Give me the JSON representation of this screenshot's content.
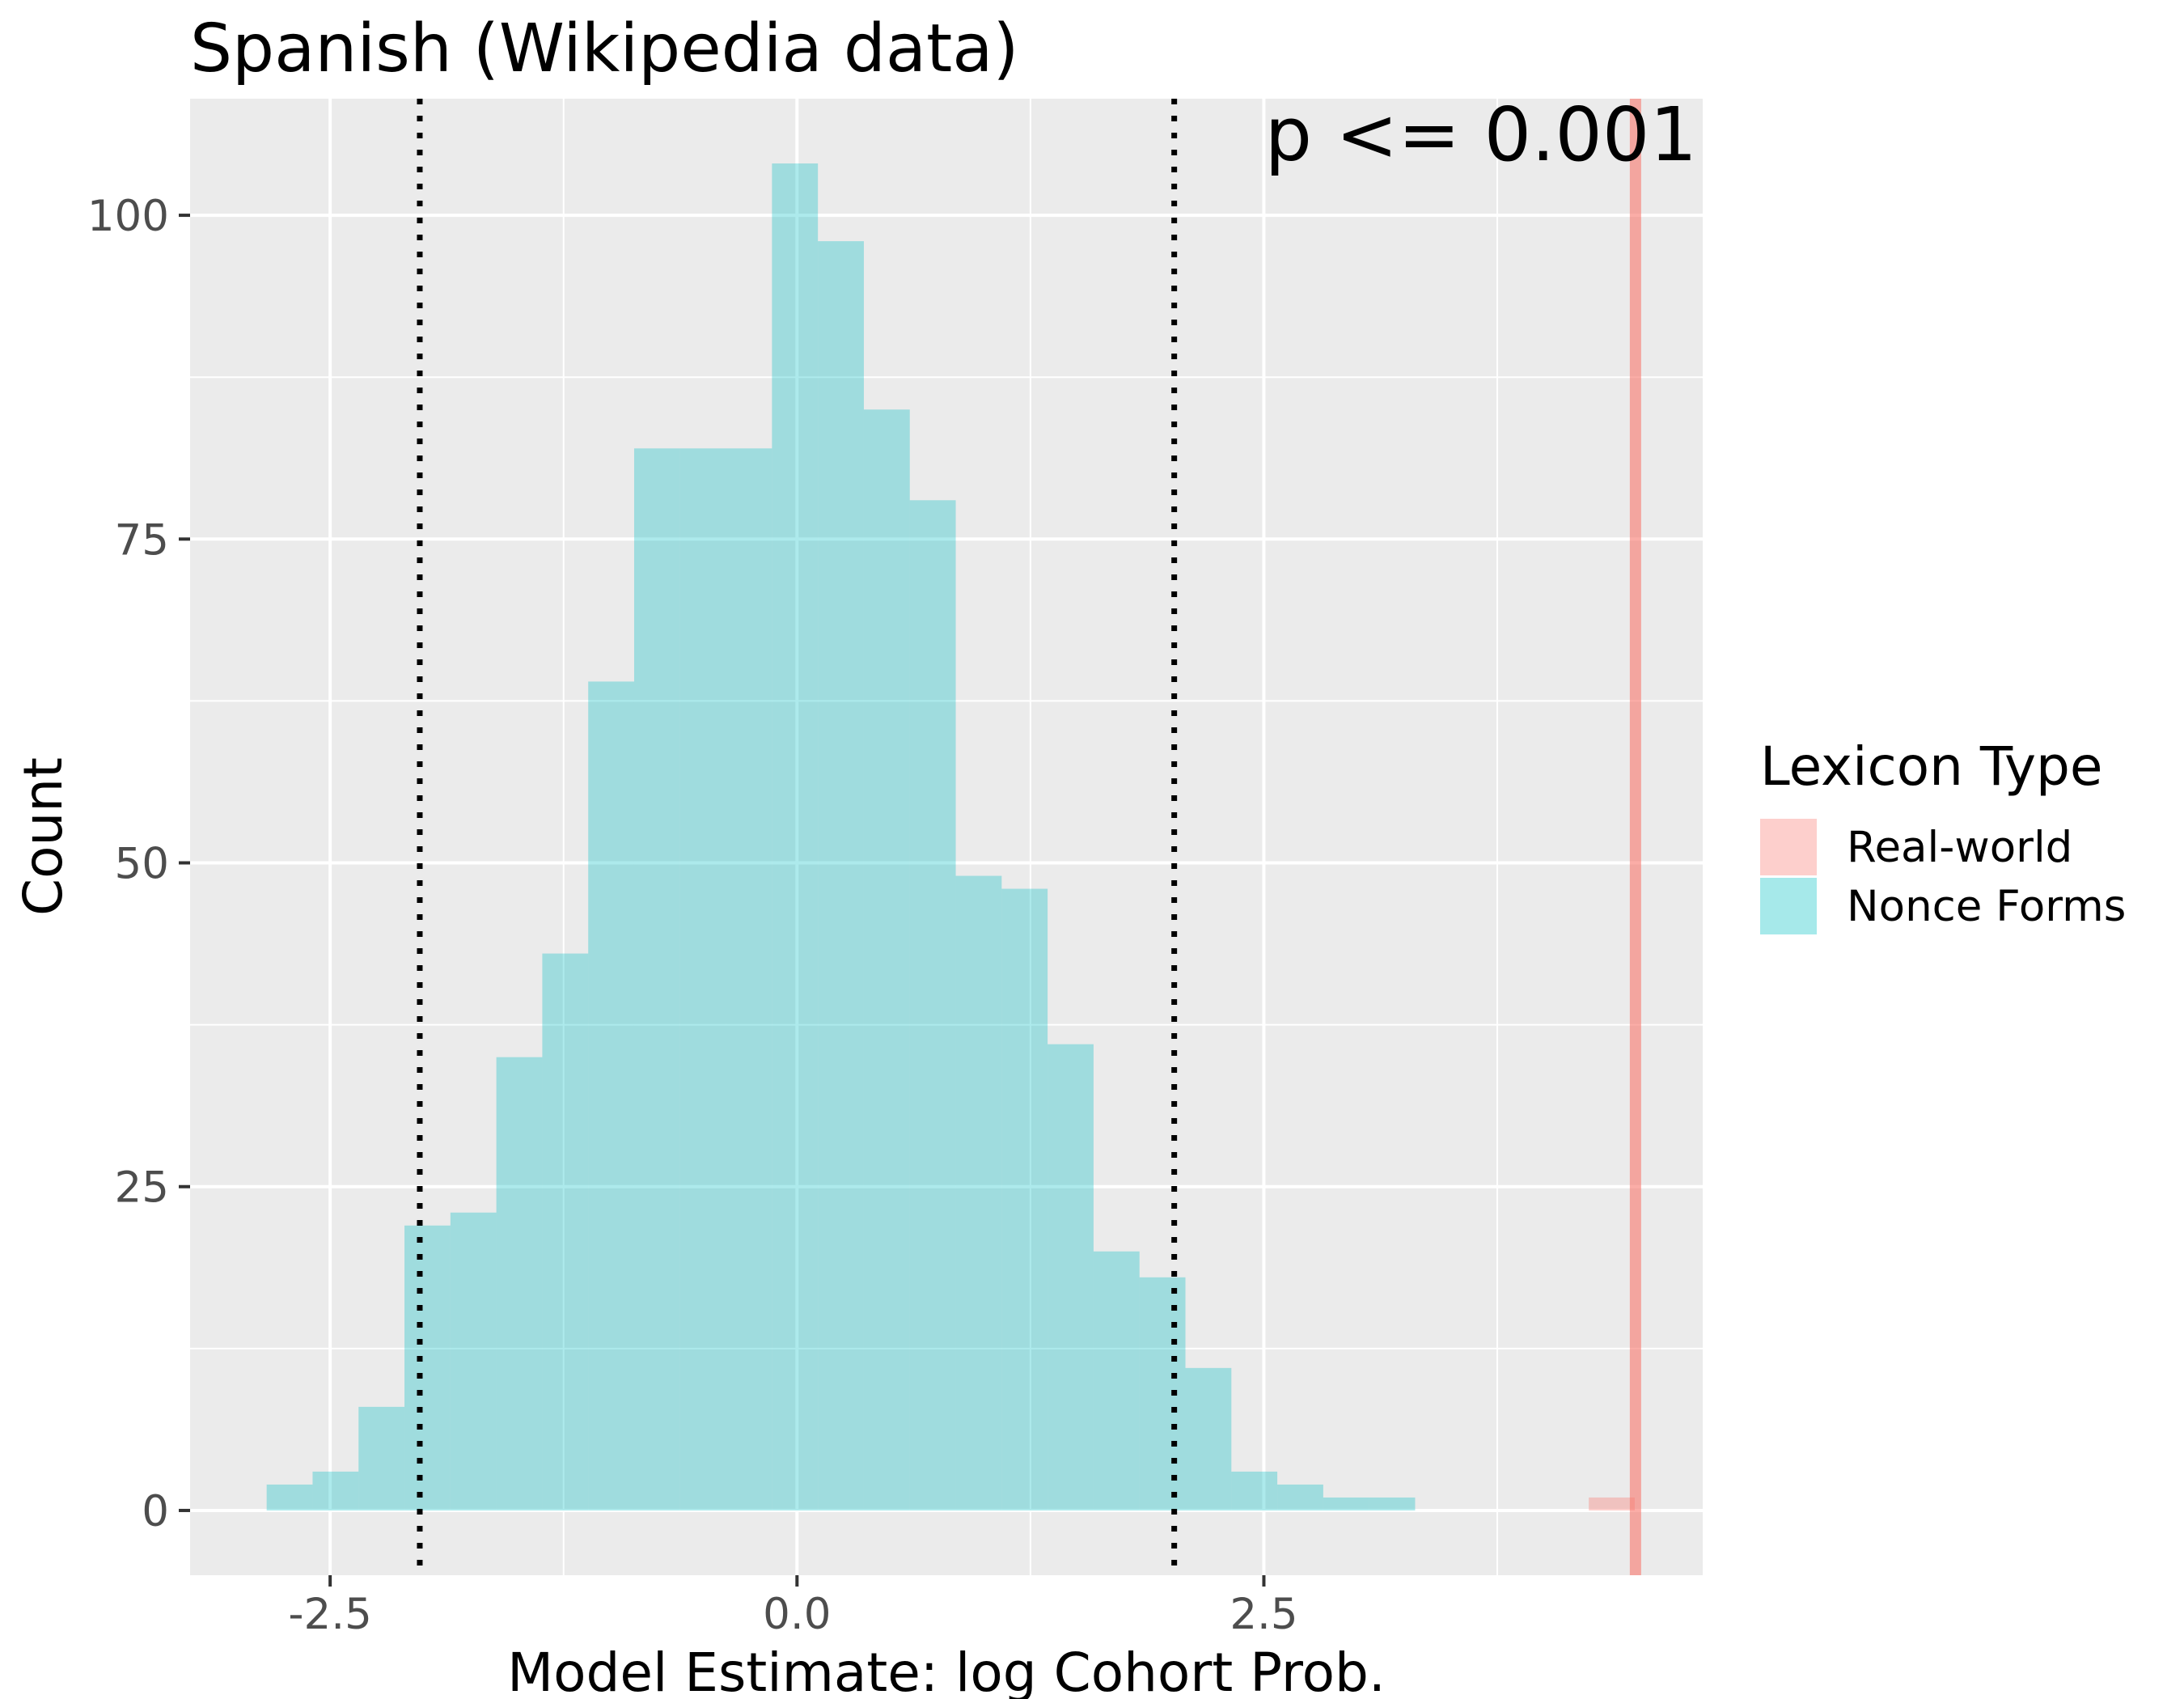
{
  "chart_data": {
    "type": "histogram",
    "title": "Spanish (Wikipedia data)",
    "xlabel": "Model Estimate: log Cohort Prob.",
    "ylabel": "Count",
    "xlim": [
      -3.25,
      4.85
    ],
    "ylim": [
      -5,
      109
    ],
    "x_ticks": [
      -2.5,
      0.0,
      2.5
    ],
    "x_tick_labels": [
      "-2.5",
      "0.0",
      "2.5"
    ],
    "y_ticks": [
      0,
      25,
      50,
      75,
      100
    ],
    "y_tick_labels": [
      "0",
      "25",
      "50",
      "75",
      "100"
    ],
    "grid": true,
    "legend": {
      "title": "Lexicon Type",
      "placement": "right",
      "items": [
        {
          "label": "Real-world",
          "color": "#F8766D"
        },
        {
          "label": "Nonce Forms",
          "color": "#00BFC4"
        }
      ]
    },
    "series": [
      {
        "name": "Nonce Forms",
        "color": "#00BFC4",
        "bin_width": 0.246,
        "bins": [
          {
            "x0": -2.84,
            "count": 2
          },
          {
            "x0": -2.594,
            "count": 3
          },
          {
            "x0": -2.348,
            "count": 8
          },
          {
            "x0": -2.102,
            "count": 22
          },
          {
            "x0": -1.856,
            "count": 23
          },
          {
            "x0": -1.61,
            "count": 35
          },
          {
            "x0": -1.364,
            "count": 43
          },
          {
            "x0": -1.118,
            "count": 64
          },
          {
            "x0": -0.872,
            "count": 82
          },
          {
            "x0": -0.626,
            "count": 82
          },
          {
            "x0": -0.38,
            "count": 82
          },
          {
            "x0": -0.134,
            "count": 104
          },
          {
            "x0": 0.112,
            "count": 98
          },
          {
            "x0": 0.358,
            "count": 85
          },
          {
            "x0": 0.604,
            "count": 78
          },
          {
            "x0": 0.85,
            "count": 49
          },
          {
            "x0": 1.096,
            "count": 48
          },
          {
            "x0": 1.342,
            "count": 36
          },
          {
            "x0": 1.588,
            "count": 20
          },
          {
            "x0": 1.834,
            "count": 18
          },
          {
            "x0": 2.08,
            "count": 11
          },
          {
            "x0": 2.326,
            "count": 3
          },
          {
            "x0": 2.572,
            "count": 2
          },
          {
            "x0": 2.818,
            "count": 1
          },
          {
            "x0": 3.064,
            "count": 1
          }
        ]
      },
      {
        "name": "Real-world",
        "color": "#F8766D",
        "bin_width": 0.246,
        "bins": [
          {
            "x0": 4.24,
            "count": 1
          }
        ]
      }
    ],
    "reference_lines": [
      {
        "x": -2.02,
        "style": "dotted",
        "color": "#000000"
      },
      {
        "x": 2.02,
        "style": "dotted",
        "color": "#000000"
      },
      {
        "x": 4.49,
        "style": "solid",
        "color": "#F8766D"
      }
    ],
    "annotation": {
      "text": "p <= 0.001",
      "x": 3.7,
      "y": 104
    }
  }
}
